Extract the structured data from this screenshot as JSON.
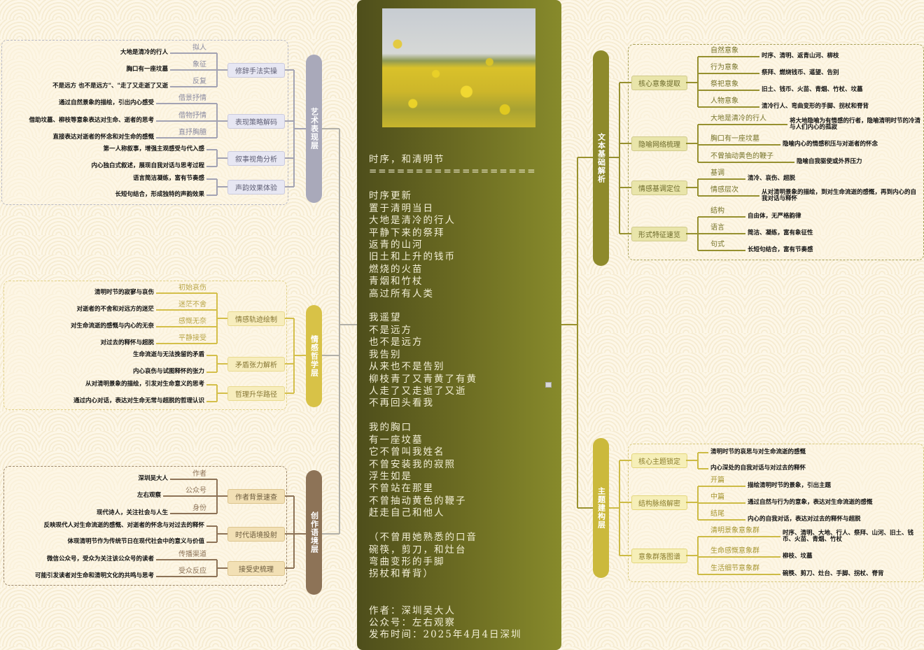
{
  "poem_card": {
    "lines": [
      "时序，和清明节",
      "==================",
      "",
      "时序更新",
      "置于清明当日",
      "大地是清冷的行人",
      "平静下来的祭拜",
      "返青的山河",
      "旧土和上升的钱币",
      "燃烧的火苗",
      "青烟和竹杖",
      "高过所有人类",
      "",
      "我遥望",
      "不是远方",
      "也不是远方",
      "我告别",
      "从来也不是告别",
      "柳枝青了又青黄了有黄",
      "人走了又走逝了又逝",
      "不再回头看我",
      "",
      "我的胸口",
      "有一座坟墓",
      "它不曾叫我姓名",
      "不曾安装我的寂照",
      "浮生如是",
      "不曾站在那里",
      "不曾抽动黄色的鞭子",
      "赶走自己和他人",
      "",
      "（不曾用她熟悉的口音",
      "碗筷，剪刀，和灶台",
      "弯曲变形的手脚",
      "拐杖和脊背）",
      "",
      "",
      "作者：深圳吴大人",
      "公众号：左右观察",
      "发布时间：2025年4月4日深圳"
    ]
  },
  "branches": [
    {
      "title": "艺术表现层",
      "bar_color": "#a9a9ba",
      "line_color": "#a3a3b3",
      "label_color": "#8a8aa0",
      "node_bg": "#e7e7f3",
      "node_border": "#cbcbdf",
      "node_text": "#5f5f75",
      "box_border": "#b8b8c4",
      "nodes": [
        {
          "label": "修辞手法实操",
          "children": [
            {
              "label": "拟人",
              "text": "大地是清冷的行人"
            },
            {
              "label": "象征",
              "text": "胸口有一座坟墓"
            },
            {
              "label": "反复",
              "text": "不是远方 也不是远方\"、\"走了又走逝了又逝"
            }
          ]
        },
        {
          "label": "表现策略解码",
          "children": [
            {
              "label": "借景抒情",
              "text": "通过自然景象的描绘，引出内心感受"
            },
            {
              "label": "借物抒情",
              "text": "借助坟墓、柳枝等意象表达对生命、逝者的思考"
            },
            {
              "label": "直抒胸臆",
              "text": "直接表达对逝者的怀念和对生命的感慨"
            }
          ]
        },
        {
          "label": "叙事视角分析",
          "children": [
            {
              "label": "",
              "text": "第一人称叙事，增强主观感受与代入感"
            },
            {
              "label": "",
              "text": "内心独白式叙述，展现自我对话与思考过程"
            }
          ]
        },
        {
          "label": "声韵效果体验",
          "children": [
            {
              "label": "",
              "text": "语言简洁凝练，富有节奏感"
            },
            {
              "label": "",
              "text": "长短句结合，形成独特的声韵效果"
            }
          ]
        }
      ]
    },
    {
      "title": "情感哲学层",
      "bar_color": "#d8c247",
      "line_color": "#d4bf4a",
      "label_color": "#b9a648",
      "node_bg": "#f7edbd",
      "node_border": "#e9da8e",
      "node_text": "#857532",
      "box_border": "#e2d28a",
      "nodes": [
        {
          "label": "情感轨迹绘制",
          "children": [
            {
              "label": "初始哀伤",
              "text": "清明时节的寂寥与哀伤"
            },
            {
              "label": "迷茫不舍",
              "text": "对逝者的不舍和对远方的迷茫"
            },
            {
              "label": "感慨无奈",
              "text": "对生命流逝的感慨与内心的无奈"
            },
            {
              "label": "平静接受",
              "text": "对过去的释怀与超脱"
            }
          ]
        },
        {
          "label": "矛盾张力解析",
          "children": [
            {
              "label": "",
              "text": "生命流逝与无法挽留的矛盾"
            },
            {
              "label": "",
              "text": "内心哀伤与试图释怀的张力"
            }
          ]
        },
        {
          "label": "哲理升华路径",
          "children": [
            {
              "label": "",
              "text": "从对清明景象的描绘，引发对生命意义的思考"
            },
            {
              "label": "",
              "text": "通过内心对话，表达对生命无常与超脱的哲理认识"
            }
          ]
        }
      ]
    },
    {
      "title": "创作语境层",
      "bar_color": "#8d7357",
      "line_color": "#8d7357",
      "label_color": "#8d7357",
      "node_bg": "#f2e0b5",
      "node_border": "#dcc48d",
      "node_text": "#6b5a3c",
      "box_border": "#9c8669",
      "nodes": [
        {
          "label": "作者背景速查",
          "children": [
            {
              "label": "作者",
              "text": "深圳吴大人"
            },
            {
              "label": "公众号",
              "text": "左右观察"
            },
            {
              "label": "身份",
              "text": "现代诗人，关注社会与人生"
            }
          ]
        },
        {
          "label": "时代语境投射",
          "children": [
            {
              "label": "",
              "text": "反映现代人对生命流逝的感慨、对逝者的怀念与对过去的释怀"
            },
            {
              "label": "",
              "text": "体现清明节作为传统节日在现代社会中的意义与价值"
            }
          ]
        },
        {
          "label": "接受史梳理",
          "children": [
            {
              "label": "传播渠道",
              "text": "微信公众号，受众为关注该公众号的读者"
            },
            {
              "label": "受众反应",
              "text": "可能引发读者对生命和清明文化的共鸣与思考"
            }
          ]
        }
      ]
    },
    {
      "title": "文本基础解析",
      "bar_color": "#8e8a2b",
      "line_color": "#96902f",
      "label_color": "#77742a",
      "node_bg": "#e9e5aa",
      "node_border": "#d1cb8c",
      "node_text": "#6c6a2b",
      "box_border": "#a8a158",
      "nodes": [
        {
          "label": "核心意象提取",
          "children": [
            {
              "label": "自然意象",
              "text": "时序、清明、返青山河、柳枝"
            },
            {
              "label": "行为意象",
              "text": "祭拜、燃烧钱币、遥望、告别"
            },
            {
              "label": "祭祀意象",
              "text": "旧土、钱币、火苗、青烟、竹杖、坟墓"
            },
            {
              "label": "人物意象",
              "text": "清冷行人、弯曲变形的手脚、拐杖和脊背"
            }
          ]
        },
        {
          "label": "隐喻网络梳理",
          "children": [
            {
              "label": "大地是清冷的行人",
              "text": "将大地隐喻为有情感的行者，隐喻清明时节的冷清与人们内心的孤寂"
            },
            {
              "label": "胸口有一座坟墓",
              "text": "隐喻内心的情感积压与对逝者的怀念"
            },
            {
              "label": "不曾抽动黄色的鞭子",
              "text": "隐喻自我驱使或外界压力"
            }
          ]
        },
        {
          "label": "情感基调定位",
          "children": [
            {
              "label": "基调",
              "text": "清冷、哀伤、超脱"
            },
            {
              "label": "情感层次",
              "text": "从对清明景象的描绘，到对生命流逝的感慨，再到内心的自我对话与释怀"
            }
          ]
        },
        {
          "label": "形式特征速览",
          "children": [
            {
              "label": "结构",
              "text": "自由体，无严格韵律"
            },
            {
              "label": "语言",
              "text": "简洁、凝练，富有象征性"
            },
            {
              "label": "句式",
              "text": "长短句结合，富有节奏感"
            }
          ]
        }
      ]
    },
    {
      "title": "主题建构层",
      "bar_color": "#cbb93c",
      "line_color": "#cdbb45",
      "label_color": "#a79631",
      "node_bg": "#f6efb8",
      "node_border": "#e4d77c",
      "node_text": "#8a7d2e",
      "box_border": "#d6c77a",
      "nodes": [
        {
          "label": "核心主题锁定",
          "children": [
            {
              "label": "",
              "text": "清明时节的哀思与对生命流逝的感慨"
            },
            {
              "label": "",
              "text": "内心深处的自我对话与对过去的释怀"
            }
          ]
        },
        {
          "label": "结构脉络解密",
          "children": [
            {
              "label": "开篇",
              "text": "描绘清明时节的景象，引出主题"
            },
            {
              "label": "中篇",
              "text": "通过自然与行为的意象，表达对生命流逝的感慨"
            },
            {
              "label": "结尾",
              "text": "内心的自我对话，表达对过去的释怀与超脱"
            }
          ]
        },
        {
          "label": "意象群落图谱",
          "children": [
            {
              "label": "清明景象意象群",
              "text": "时序、清明、大地、行人、祭拜、山河、旧土、钱币、火苗、青烟、竹杖"
            },
            {
              "label": "生命感慨意象群",
              "text": "柳枝、坟墓"
            },
            {
              "label": "生活细节意象群",
              "text": "碗筷、剪刀、灶台、手脚、拐杖、脊背"
            }
          ]
        }
      ]
    }
  ]
}
